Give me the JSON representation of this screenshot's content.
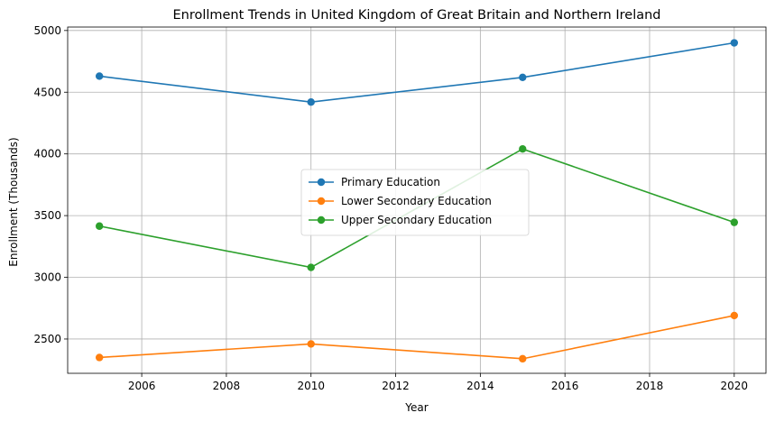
{
  "chart_data": {
    "type": "line",
    "title": "Enrollment Trends in United Kingdom of Great Britain and Northern Ireland",
    "xlabel": "Year",
    "ylabel": "Enrollment (Thousands)",
    "x": [
      2005,
      2010,
      2015,
      2020
    ],
    "xlim": [
      2004.25,
      2020.75
    ],
    "ylim": [
      2222,
      5028
    ],
    "xticks": [
      2006,
      2008,
      2010,
      2012,
      2014,
      2016,
      2018,
      2020
    ],
    "yticks": [
      2500,
      3000,
      3500,
      4000,
      4500,
      5000
    ],
    "grid": true,
    "legend_position": "center",
    "marker": "circle",
    "series": [
      {
        "name": "Primary Education",
        "color": "#1f77b4",
        "values": [
          4630,
          4420,
          4620,
          4900
        ]
      },
      {
        "name": "Lower Secondary Education",
        "color": "#ff7f0e",
        "values": [
          2350,
          2460,
          2340,
          2690
        ]
      },
      {
        "name": "Upper Secondary Education",
        "color": "#2ca02c",
        "values": [
          3415,
          3080,
          4040,
          3445
        ]
      }
    ]
  }
}
